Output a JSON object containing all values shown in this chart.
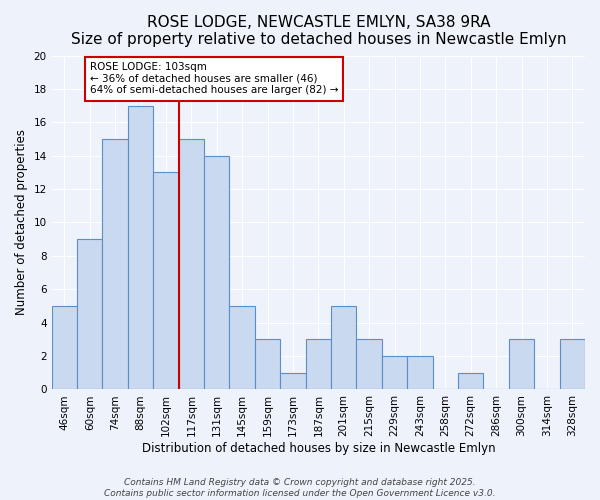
{
  "title": "ROSE LODGE, NEWCASTLE EMLYN, SA38 9RA",
  "subtitle": "Size of property relative to detached houses in Newcastle Emlyn",
  "xlabel": "Distribution of detached houses by size in Newcastle Emlyn",
  "ylabel": "Number of detached properties",
  "bar_labels": [
    "46sqm",
    "60sqm",
    "74sqm",
    "88sqm",
    "102sqm",
    "117sqm",
    "131sqm",
    "145sqm",
    "159sqm",
    "173sqm",
    "187sqm",
    "201sqm",
    "215sqm",
    "229sqm",
    "243sqm",
    "258sqm",
    "272sqm",
    "286sqm",
    "300sqm",
    "314sqm",
    "328sqm"
  ],
  "bar_values": [
    5,
    9,
    15,
    17,
    13,
    15,
    14,
    5,
    3,
    1,
    3,
    5,
    3,
    2,
    2,
    0,
    1,
    0,
    3,
    0,
    3
  ],
  "bar_color": "#c9d9f0",
  "bar_edgecolor": "#5b8fc9",
  "ylim": [
    0,
    20
  ],
  "yticks": [
    0,
    2,
    4,
    6,
    8,
    10,
    12,
    14,
    16,
    18,
    20
  ],
  "annotation_title": "ROSE LODGE: 103sqm",
  "annotation_line1": "← 36% of detached houses are smaller (46)",
  "annotation_line2": "64% of semi-detached houses are larger (82) →",
  "annotation_box_color": "#ffffff",
  "annotation_box_edgecolor": "#cc0000",
  "vline_color": "#cc0000",
  "background_color": "#eef2fb",
  "grid_color": "#ffffff",
  "footer_line1": "Contains HM Land Registry data © Crown copyright and database right 2025.",
  "footer_line2": "Contains public sector information licensed under the Open Government Licence v3.0.",
  "title_fontsize": 11,
  "subtitle_fontsize": 9,
  "xlabel_fontsize": 8.5,
  "ylabel_fontsize": 8.5,
  "tick_fontsize": 7.5,
  "footer_fontsize": 6.5
}
